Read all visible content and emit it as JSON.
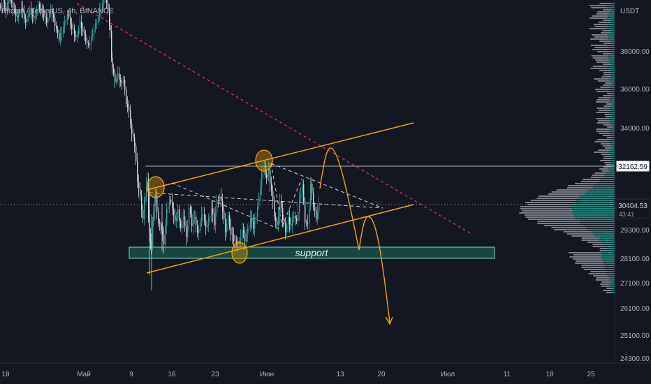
{
  "header": {
    "title": "Bitcoin / TetherUS, 4h, BINANCE"
  },
  "chart_data": {
    "type": "candlestick",
    "symbol": "Bitcoin / TetherUS",
    "interval": "4h",
    "exchange": "BINANCE",
    "currency_label": "USDT",
    "y_ticks": [
      38000,
      36000,
      34000,
      29300,
      28100,
      27100,
      26100,
      25100,
      24300
    ],
    "y_tick_labels": [
      "38000.00",
      "36000.00",
      "34000.00",
      "29300.00",
      "28100.00",
      "27100.00",
      "26100.00",
      "25100.00",
      "24300.00"
    ],
    "x_tick_labels": [
      "18",
      "Май",
      "9",
      "16",
      "23",
      "Июн",
      "13",
      "20",
      "Июл",
      "11",
      "18",
      "25"
    ],
    "price_markers": [
      {
        "label": "32162.59",
        "value": 32162.59
      },
      {
        "label": "30404.53",
        "value": 30404.53,
        "sub_label": "43:41"
      }
    ],
    "annotations": [
      {
        "label": "support",
        "value_range": [
          28200,
          28700
        ]
      }
    ],
    "price_path": [
      [
        0,
        40400
      ],
      [
        4,
        40700
      ],
      [
        8,
        40100
      ],
      [
        12,
        40800
      ],
      [
        18,
        40300
      ],
      [
        24,
        39800
      ],
      [
        30,
        40300
      ],
      [
        36,
        39500
      ],
      [
        42,
        40200
      ],
      [
        48,
        39700
      ],
      [
        54,
        40400
      ],
      [
        60,
        40000
      ],
      [
        66,
        39600
      ],
      [
        72,
        40200
      ],
      [
        78,
        39400
      ],
      [
        84,
        38600
      ],
      [
        90,
        39300
      ],
      [
        96,
        40000
      ],
      [
        102,
        39200
      ],
      [
        108,
        38700
      ],
      [
        114,
        39500
      ],
      [
        120,
        38800
      ],
      [
        126,
        38200
      ],
      [
        132,
        39000
      ],
      [
        138,
        39600
      ],
      [
        144,
        40300
      ],
      [
        150,
        40800
      ],
      [
        154,
        40200
      ],
      [
        157,
        39000
      ],
      [
        160,
        37100
      ],
      [
        164,
        36400
      ],
      [
        168,
        36700
      ],
      [
        172,
        36300
      ],
      [
        176,
        36500
      ],
      [
        180,
        35300
      ],
      [
        184,
        34800
      ],
      [
        188,
        33700
      ],
      [
        192,
        33200
      ],
      [
        196,
        31600
      ],
      [
        200,
        30800
      ],
      [
        204,
        29800
      ],
      [
        207,
        30900
      ],
      [
        210,
        31500
      ],
      [
        213,
        29100
      ],
      [
        216,
        28600
      ],
      [
        219,
        30200
      ],
      [
        222,
        30800
      ],
      [
        226,
        29600
      ],
      [
        230,
        29300
      ],
      [
        234,
        28800
      ],
      [
        238,
        30200
      ],
      [
        242,
        30700
      ],
      [
        246,
        30300
      ],
      [
        250,
        29600
      ],
      [
        254,
        30200
      ],
      [
        258,
        29400
      ],
      [
        262,
        30000
      ],
      [
        266,
        28900
      ],
      [
        270,
        30300
      ],
      [
        274,
        29500
      ],
      [
        278,
        30000
      ],
      [
        282,
        29100
      ],
      [
        286,
        29700
      ],
      [
        290,
        30100
      ],
      [
        294,
        29300
      ],
      [
        298,
        29800
      ],
      [
        302,
        30300
      ],
      [
        306,
        29600
      ],
      [
        310,
        30600
      ],
      [
        314,
        30800
      ],
      [
        318,
        30200
      ],
      [
        322,
        29300
      ],
      [
        326,
        29900
      ],
      [
        330,
        29100
      ],
      [
        334,
        28900
      ],
      [
        338,
        28700
      ],
      [
        342,
        28800
      ],
      [
        346,
        29300
      ],
      [
        350,
        28900
      ],
      [
        354,
        29300
      ],
      [
        358,
        29800
      ],
      [
        362,
        29400
      ],
      [
        366,
        30000
      ],
      [
        370,
        30800
      ],
      [
        374,
        31900
      ],
      [
        378,
        32300
      ],
      [
        381,
        31600
      ],
      [
        384,
        32000
      ],
      [
        388,
        31100
      ],
      [
        392,
        30000
      ],
      [
        396,
        29400
      ],
      [
        400,
        30600
      ],
      [
        404,
        29800
      ],
      [
        408,
        29300
      ],
      [
        412,
        29800
      ],
      [
        416,
        29500
      ],
      [
        420,
        30000
      ],
      [
        424,
        29600
      ],
      [
        428,
        30700
      ],
      [
        432,
        31400
      ],
      [
        436,
        29700
      ],
      [
        440,
        29500
      ],
      [
        444,
        31400
      ],
      [
        448,
        30400
      ],
      [
        452,
        29900
      ],
      [
        456,
        30404
      ]
    ]
  }
}
